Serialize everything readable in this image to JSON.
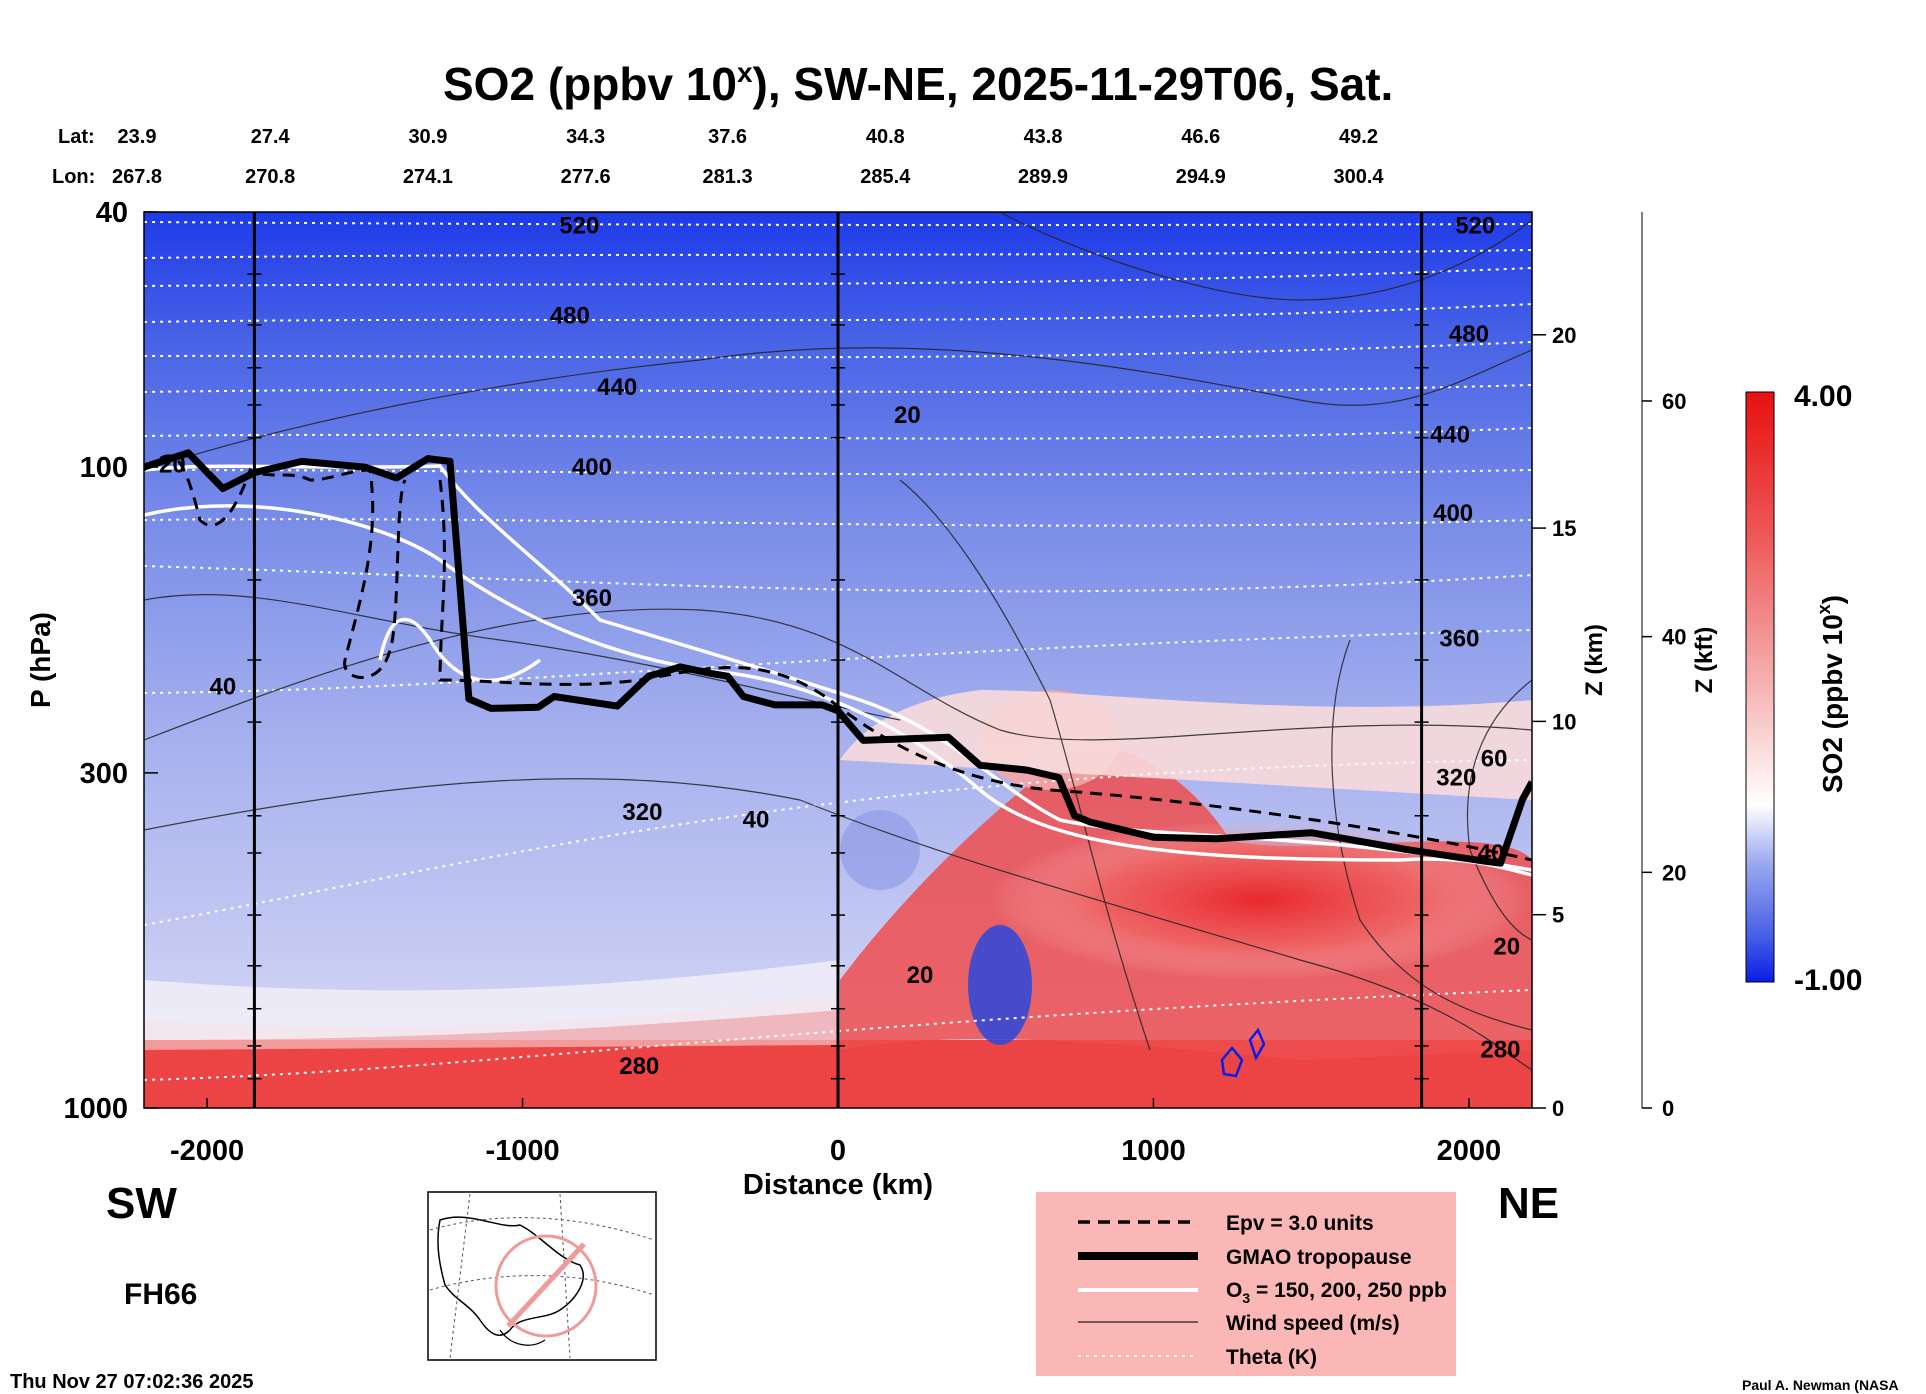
{
  "chart_data": {
    "type": "heatmap",
    "title_main": "SO2 (ppbv 10",
    "title_sup": "x",
    "title_rest": "), SW-NE, 2025-11-29T06, Sat.",
    "lat_label": "Lat:",
    "lon_label": "Lon:",
    "lat_values": [
      "23.9",
      "27.4",
      "30.9",
      "34.3",
      "37.6",
      "40.8",
      "43.8",
      "46.6",
      "49.2"
    ],
    "lon_values": [
      "267.8",
      "270.8",
      "274.1",
      "277.6",
      "281.3",
      "285.4",
      "289.9",
      "294.9",
      "300.4"
    ],
    "station_distances_km": [
      -2250,
      -1800,
      -1300,
      -800,
      -350,
      150,
      650,
      1150,
      1650
    ],
    "xlabel": "Distance (km)",
    "xlim": [
      -2200,
      2200
    ],
    "xticks": [
      -2000,
      -1000,
      0,
      1000,
      2000
    ],
    "xtick_labels": [
      "-2000",
      "-1000",
      "0",
      "1000",
      "2000"
    ],
    "ylabel": "P (hPa)",
    "ylim": [
      1000,
      40
    ],
    "yticks": [
      40,
      100,
      300,
      1000
    ],
    "ytick_labels": [
      "40",
      "100",
      "300",
      "1000"
    ],
    "z_km_label": "Z (km)",
    "z_km_ticks": [
      0,
      5,
      10,
      15,
      20
    ],
    "z_km_labels": [
      "0",
      "5",
      "10",
      "15",
      "20"
    ],
    "z_kft_label": "Z (kft)",
    "z_kft_ticks": [
      0,
      20,
      40,
      60
    ],
    "z_kft_labels": [
      "0",
      "20",
      "40",
      "60"
    ],
    "vertical_lines_km": [
      -1850,
      0,
      1850
    ],
    "colorbar": {
      "label": "SO2 (ppbv 10",
      "label_sup": "x",
      "label_end": ")",
      "min": -1.0,
      "max": 4.0,
      "min_label": "-1.00",
      "max_label": "4.00",
      "low_color": "#0a1ee6",
      "mid_color": "#ffffff",
      "high_color": "#e81010"
    },
    "theta_labels": [
      {
        "text": "520",
        "x": -820,
        "p": 42
      },
      {
        "text": "520",
        "x": 2020,
        "p": 42
      },
      {
        "text": "480",
        "x": -850,
        "p": 58
      },
      {
        "text": "480",
        "x": 2000,
        "p": 62
      },
      {
        "text": "440",
        "x": -700,
        "p": 75
      },
      {
        "text": "440",
        "x": 1940,
        "p": 89
      },
      {
        "text": "400",
        "x": -780,
        "p": 100
      },
      {
        "text": "400",
        "x": 1950,
        "p": 118
      },
      {
        "text": "360",
        "x": -780,
        "p": 160
      },
      {
        "text": "360",
        "x": 1970,
        "p": 185
      },
      {
        "text": "320",
        "x": -620,
        "p": 345
      },
      {
        "text": "320",
        "x": 1960,
        "p": 305
      },
      {
        "text": "280",
        "x": -630,
        "p": 860
      },
      {
        "text": "280",
        "x": 2100,
        "p": 810
      }
    ],
    "wind_labels": [
      {
        "text": "20",
        "x": 220,
        "p": 83
      },
      {
        "text": "40",
        "x": -1950,
        "p": 220
      },
      {
        "text": "40",
        "x": -260,
        "p": 355
      },
      {
        "text": "20",
        "x": 260,
        "p": 620
      },
      {
        "text": "60",
        "x": 2080,
        "p": 285
      },
      {
        "text": "40",
        "x": 2070,
        "p": 400
      },
      {
        "text": "20",
        "x": 2120,
        "p": 560
      },
      {
        "text": "20",
        "x": -2110,
        "p": 99
      }
    ],
    "tropopause_km_hpa": [
      [
        -2200,
        100
      ],
      [
        -2060,
        95
      ],
      [
        -1950,
        108
      ],
      [
        -1850,
        102
      ],
      [
        -1700,
        98
      ],
      [
        -1500,
        100
      ],
      [
        -1400,
        104
      ],
      [
        -1300,
        97
      ],
      [
        -1230,
        98
      ],
      [
        -1170,
        230
      ],
      [
        -1100,
        238
      ],
      [
        -950,
        237
      ],
      [
        -900,
        228
      ],
      [
        -700,
        236
      ],
      [
        -600,
        212
      ],
      [
        -500,
        205
      ],
      [
        -400,
        210
      ],
      [
        -350,
        212
      ],
      [
        -300,
        228
      ],
      [
        -200,
        235
      ],
      [
        -50,
        235
      ],
      [
        0,
        240
      ],
      [
        80,
        267
      ],
      [
        350,
        264
      ],
      [
        450,
        292
      ],
      [
        600,
        297
      ],
      [
        700,
        305
      ],
      [
        750,
        350
      ],
      [
        800,
        358
      ],
      [
        1000,
        378
      ],
      [
        1200,
        380
      ],
      [
        1500,
        372
      ],
      [
        1800,
        395
      ],
      [
        2050,
        412
      ],
      [
        2100,
        415
      ],
      [
        2170,
        330
      ],
      [
        2200,
        310
      ]
    ],
    "legend": [
      {
        "label": "Epv = 3.0 units",
        "style": "dashed"
      },
      {
        "label": "GMAO tropopause",
        "style": "thick"
      },
      {
        "label": "O",
        "sub": "3",
        "label_end": " = 150, 200, 250 ppb",
        "style": "white"
      },
      {
        "label": "Wind speed (m/s)",
        "style": "thin"
      },
      {
        "label": "Theta (K)",
        "style": "dotted"
      }
    ],
    "sw_label": "SW",
    "ne_label": "NE",
    "forecast_hour": "FH66",
    "timestamp": "Thu Nov 27 07:02:36 2025",
    "credit": "Paul A. Newman (NASA"
  }
}
